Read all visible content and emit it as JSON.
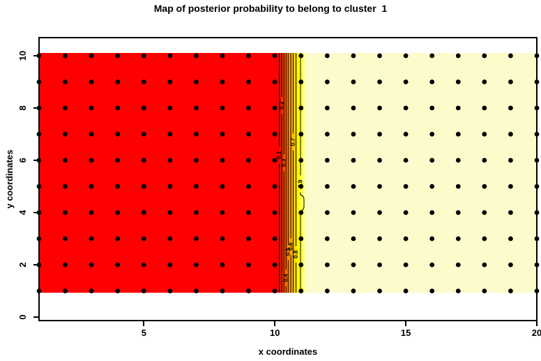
{
  "chart_data": {
    "type": "heatmap",
    "title": "Map of posterior probability to belong to cluster  1",
    "xlabel": "x coordinates",
    "ylabel": "y coordinates",
    "xlim": [
      1,
      20
    ],
    "ylim": [
      0,
      10
    ],
    "x_ticks": [
      5,
      10,
      15,
      20
    ],
    "y_ticks": [
      0,
      2,
      4,
      6,
      8,
      10
    ],
    "grid_points": {
      "x_start": 1,
      "x_end": 20,
      "y_start": 1,
      "y_end": 10,
      "step": 1,
      "count": 200,
      "dot_color": "#000000"
    },
    "fill": {
      "low_region": {
        "x": [
          1,
          10
        ],
        "probability": "0 to 0.1",
        "color": "#FF0000"
      },
      "transition": {
        "x": [
          10,
          11
        ],
        "gradient": [
          "#FF0000",
          "#FF4500",
          "#FF8C00",
          "#FFB800",
          "#FFE400",
          "#FFFF00",
          "#FFFF66",
          "#FFFFAA",
          "#FBFBCB"
        ]
      },
      "high_region": {
        "x": [
          11,
          20
        ],
        "probability": "0.9 to 1",
        "color": "#FBFBCB"
      }
    },
    "contours": [
      {
        "level": "0.1",
        "x": 10.18,
        "label_y": 6.2
      },
      {
        "level": "0.2",
        "x": 10.27,
        "label_y": 8.1
      },
      {
        "level": "0.3",
        "x": 10.35,
        "label_y": 5.9
      },
      {
        "level": "0.4",
        "x": 10.43,
        "label_y": 1.5
      },
      {
        "level": "0.5",
        "x": 10.51,
        "label_y": 2.5
      },
      {
        "level": "0.6",
        "x": 10.61,
        "label_y": 2.7
      },
      {
        "level": "0.7",
        "x": 10.7,
        "label_y": 6.7
      },
      {
        "level": "0.8",
        "x": 10.81,
        "label_y": 2.4
      },
      {
        "level": "0.9",
        "x": 10.98,
        "label_y": 5.1,
        "wiggle": true
      }
    ],
    "axis_color": "#000000",
    "background": "#FFFFFF"
  }
}
